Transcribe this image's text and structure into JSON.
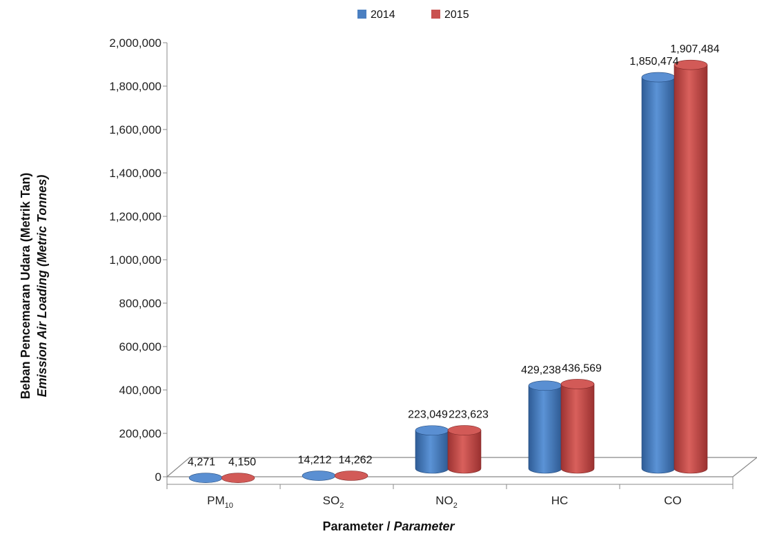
{
  "chart_data": {
    "type": "bar",
    "categories": [
      {
        "base": "PM",
        "sub": "10"
      },
      {
        "base": "SO",
        "sub": "2"
      },
      {
        "base": "NO",
        "sub": "2"
      },
      {
        "base": "HC",
        "sub": ""
      },
      {
        "base": "CO",
        "sub": ""
      }
    ],
    "series": [
      {
        "name": "2014",
        "color": "#4a7fc1",
        "values": [
          4271,
          14212,
          223049,
          429238,
          1850474
        ]
      },
      {
        "name": "2015",
        "color": "#c9514f",
        "values": [
          4150,
          14262,
          223623,
          436569,
          1907484
        ]
      }
    ],
    "data_labels": [
      [
        "4,271",
        "14,212",
        "223,049",
        "429,238",
        "1,850,474"
      ],
      [
        "4,150",
        "14,262",
        "223,623",
        "436,569",
        "1,907,484"
      ]
    ],
    "y_ticks": [
      0,
      200000,
      400000,
      600000,
      800000,
      1000000,
      1200000,
      1400000,
      1600000,
      1800000,
      2000000
    ],
    "y_tick_labels": [
      "0",
      "200,000",
      "400,000",
      "600,000",
      "800,000",
      "1,000,000",
      "1,200,000",
      "1,400,000",
      "1,600,000",
      "1,800,000",
      "2,000,000"
    ],
    "ylim": [
      0,
      2000000
    ],
    "ylabel_line1": "Beban Pencemaran Udara (Metrik Tan)",
    "ylabel_line2": "Emission Air Loading (Metric Tonnes)",
    "xlabel_main": "Parameter / ",
    "xlabel_italic": "Parameter",
    "legend_position": "top-center",
    "grid": false
  }
}
